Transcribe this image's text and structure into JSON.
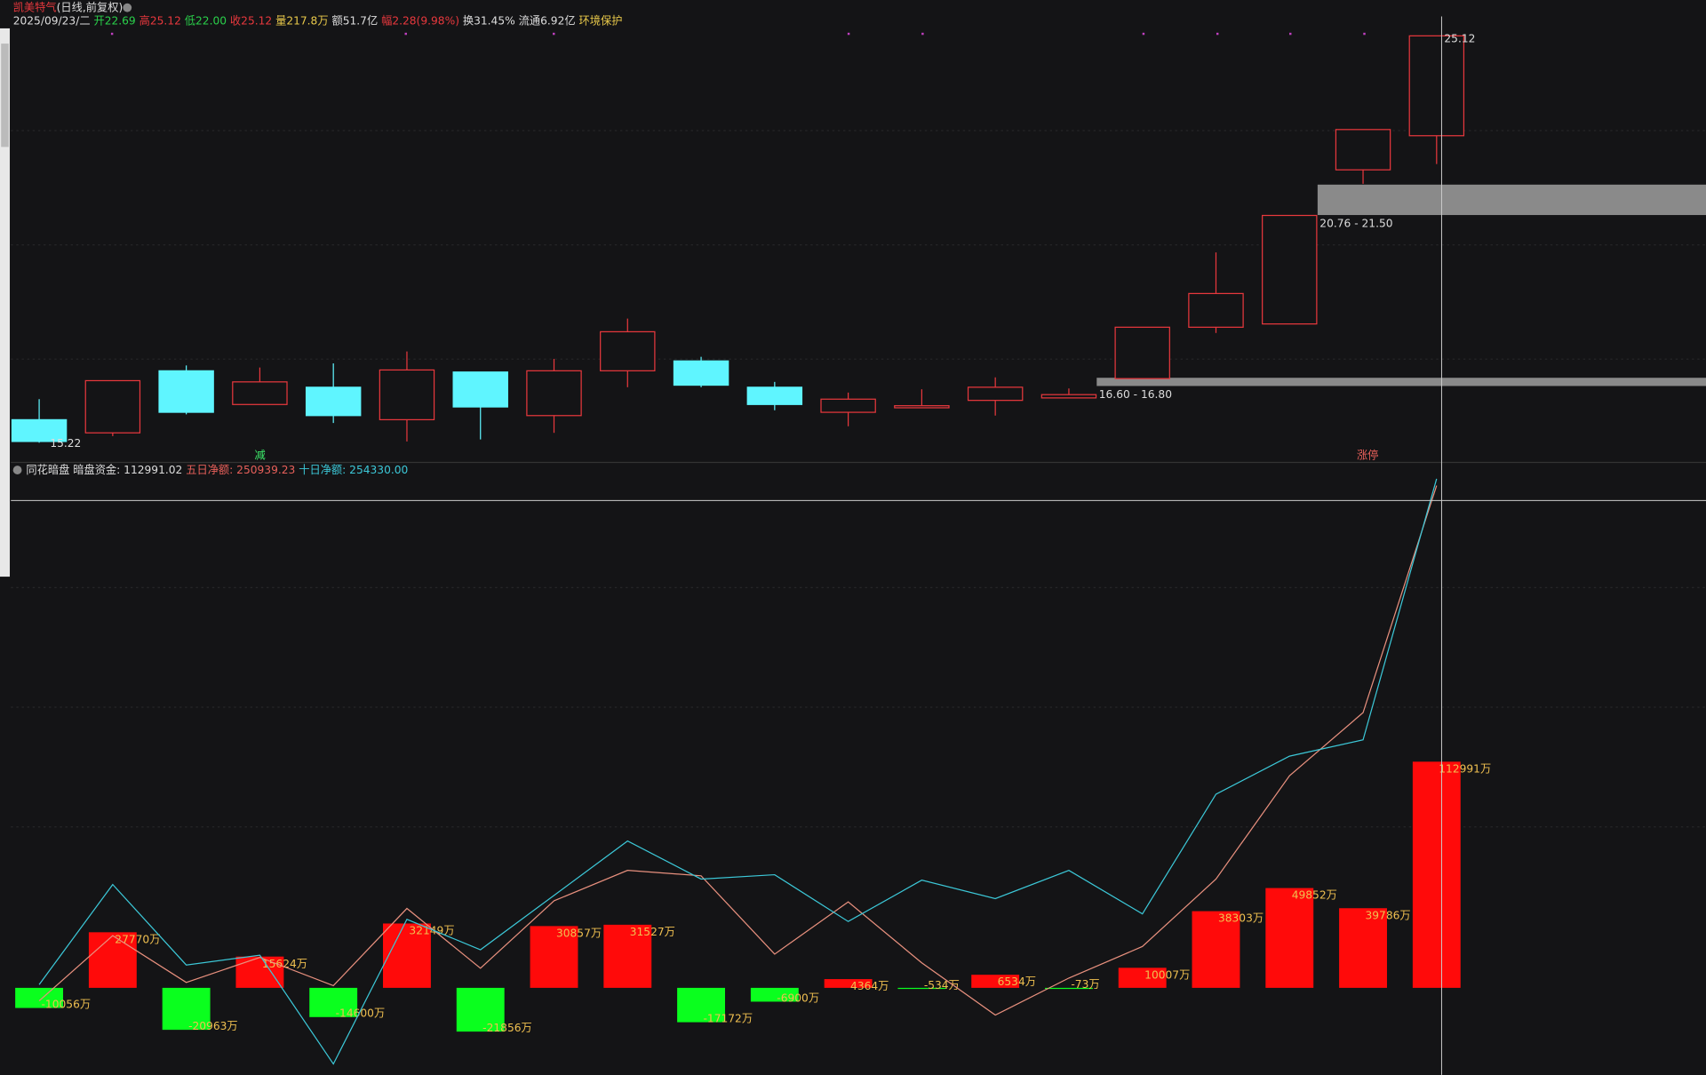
{
  "header": {
    "name": "凯美特气",
    "mode": "(日线,前复权)",
    "date": "2025/09/23/二",
    "open": "开22.69",
    "high": "高25.12",
    "low": "低22.00",
    "close": "收25.12",
    "volume": "量217.8万",
    "amount": "额51.7亿",
    "change": "幅2.28(9.98%)",
    "turnover": "换31.45%",
    "float": "流通6.92亿",
    "sector": "环境保护"
  },
  "chart_data": [
    {
      "type": "candlestick",
      "open": [
        15.78,
        15.46,
        16.97,
        16.15,
        16.57,
        15.78,
        16.94,
        15.88,
        16.97,
        17.21,
        16.57,
        15.96,
        16.07,
        16.25,
        16.31,
        16.78,
        18.03,
        18.11,
        21.86,
        22.69
      ],
      "high": [
        16.28,
        16.73,
        17.1,
        17.05,
        17.15,
        17.44,
        16.94,
        17.26,
        18.24,
        17.31,
        16.7,
        16.44,
        16.52,
        16.81,
        16.54,
        18.03,
        19.85,
        20.75,
        22.84,
        25.12
      ],
      "low": [
        15.22,
        15.38,
        15.91,
        16.15,
        15.7,
        15.25,
        15.3,
        15.46,
        16.57,
        16.57,
        16.01,
        15.62,
        16.07,
        15.88,
        16.31,
        16.78,
        17.89,
        18.11,
        21.52,
        22.0
      ],
      "close": [
        15.25,
        16.73,
        15.96,
        16.7,
        15.88,
        16.99,
        16.09,
        16.97,
        17.92,
        16.62,
        16.15,
        16.28,
        16.12,
        16.57,
        16.39,
        18.03,
        18.85,
        20.75,
        22.84,
        25.12
      ],
      "up_color": "#e8383d",
      "down_color": "#5ff5ff",
      "ylim": [
        14.74,
        25.99
      ],
      "max_label": "25.12",
      "min_label": "15.22",
      "zones": [
        {
          "low": 16.6,
          "high": 16.8,
          "label": "16.60 - 16.80"
        },
        {
          "low": 20.76,
          "high": 21.5,
          "label": "20.76 - 21.50"
        }
      ],
      "signals": [
        "减",
        "涨停"
      ]
    },
    {
      "type": "bar",
      "title": "同花暗盘",
      "indicators": [
        "暗盘资金: 112991.02",
        "五日净额: 250939.23",
        "十日净额: 254330.00"
      ],
      "values": [
        -10056,
        27770,
        -20963,
        15624,
        -14600,
        32149,
        -21856,
        30857,
        31527,
        -17172,
        -6900,
        4364,
        -534,
        6534,
        -73,
        10007,
        38303,
        49852,
        39786,
        112991
      ],
      "value_labels": [
        "-10056万",
        "27770万",
        "-20963万",
        "15624万",
        "-14600万",
        "32149万",
        "-21856万",
        "30857万",
        "31527万",
        "-17172万",
        "-6900万",
        "4364万",
        "-534万",
        "6534万",
        "-73万",
        "10007万",
        "38303万",
        "49852万",
        "39786万",
        "112991万"
      ],
      "up_color": "#ff0a0a",
      "down_color": "#0aff1e",
      "lines": [
        {
          "color": "#e8907e",
          "values": [
            -6522,
            26087,
            2717,
            15217,
            1087,
            39674,
            9783,
            43478,
            58696,
            55978,
            16848,
            42935,
            12500,
            -13587,
            4891,
            20652,
            54348,
            105978,
            137500,
            250939.23
          ]
        },
        {
          "color": "#3cc8d8",
          "values": [
            1630,
            51630,
            11413,
            16304,
            -38043,
            34239,
            19022,
            46196,
            73370,
            54348,
            56522,
            33152,
            53804,
            44565,
            58696,
            36957,
            96739,
            115761,
            123913,
            254330.0
          ]
        }
      ],
      "ylim": [
        -43500,
        254350
      ]
    }
  ]
}
